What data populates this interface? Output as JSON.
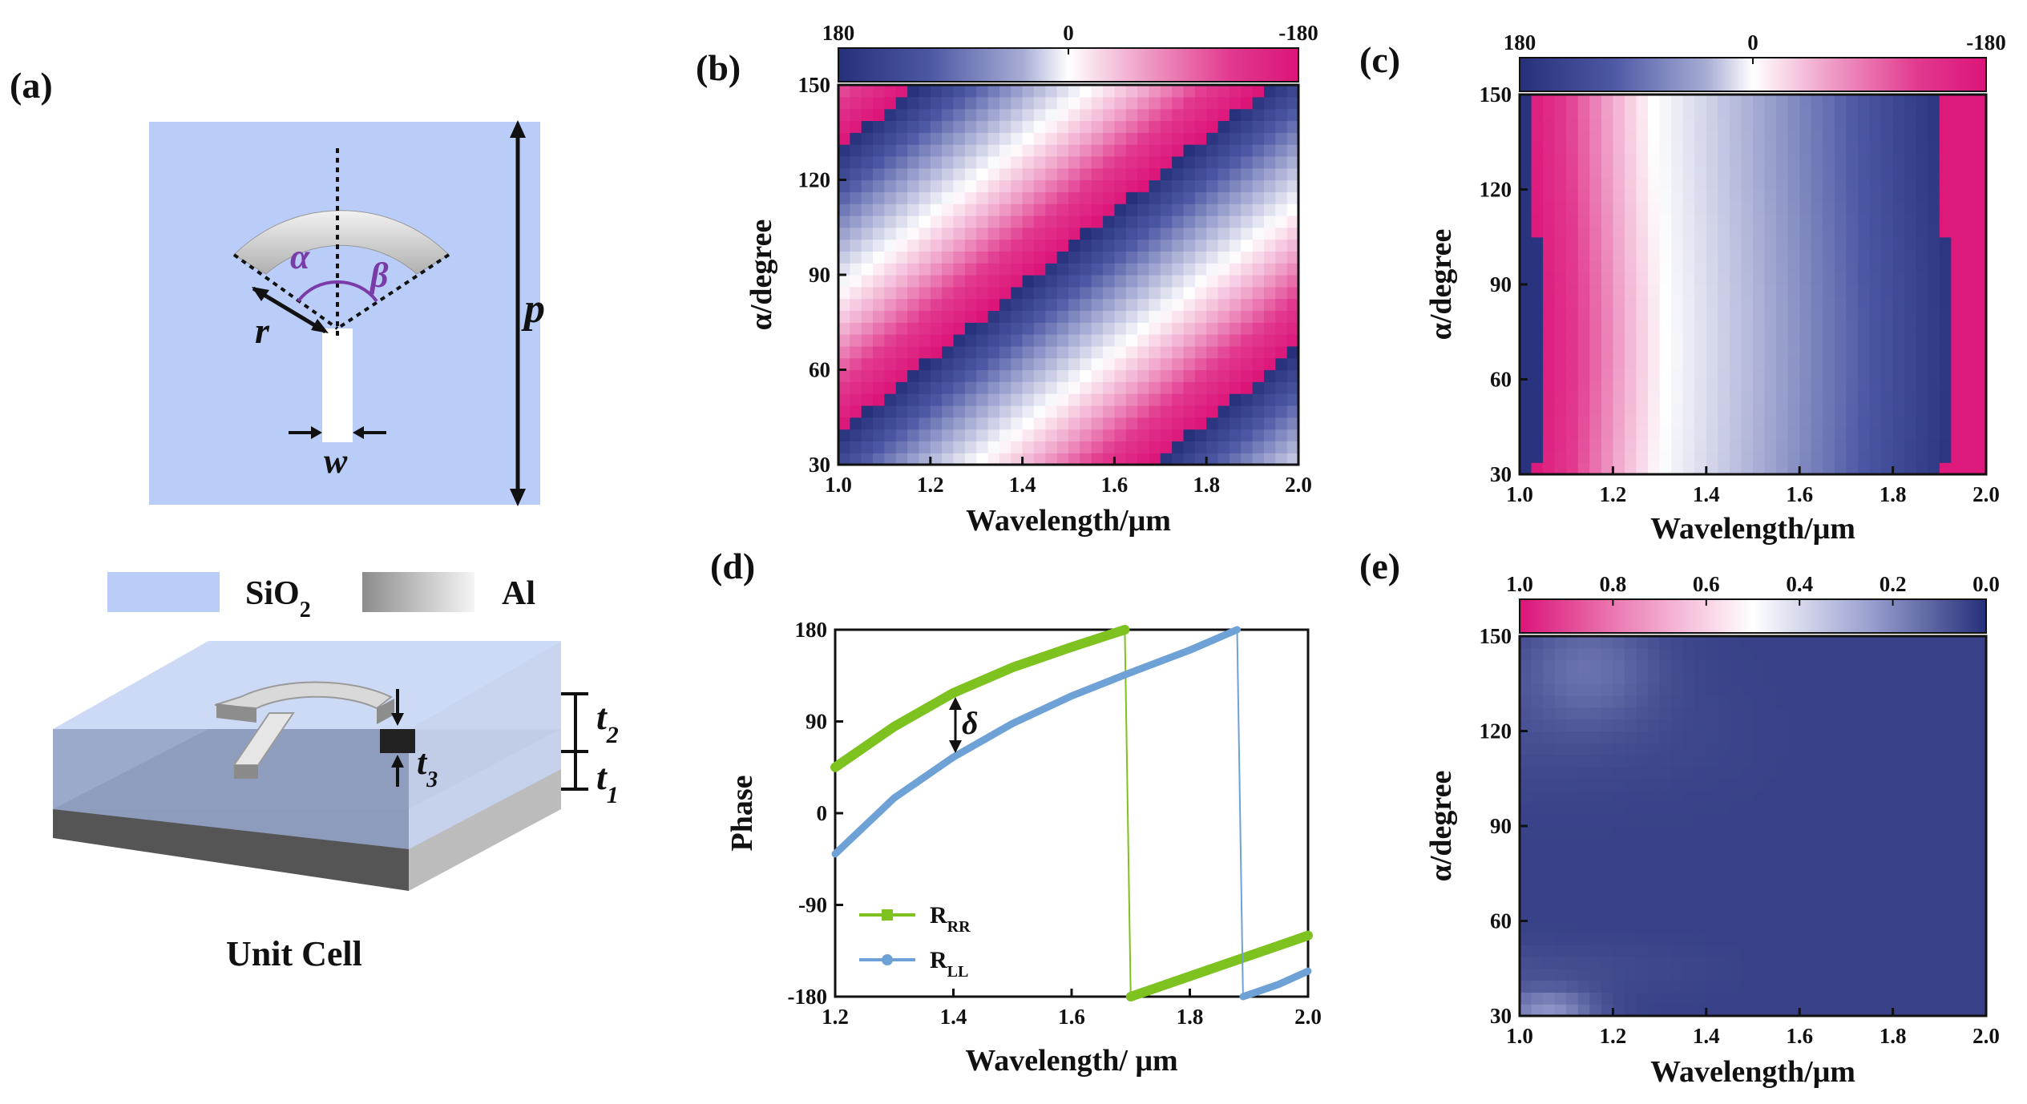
{
  "panels": {
    "a": "(a)",
    "b": "(b)",
    "c": "(c)",
    "d": "(d)",
    "e": "(e)"
  },
  "panel_a": {
    "symbols": {
      "alpha": "α",
      "beta": "β",
      "r": "r",
      "p": "p",
      "w": "w",
      "t1": "t",
      "t2": "t",
      "t3": "t",
      "t1_sub": "1",
      "t2_sub": "2",
      "t3_sub": "3"
    },
    "legend": {
      "sio2_main": "SiO",
      "sio2_sub": "2",
      "al": "Al"
    },
    "caption": "Unit Cell",
    "colors": {
      "sio2": "#b9cdf8",
      "metal_light": "#f2f2f2",
      "metal_dark": "#8c8c8c",
      "purple": "#7a3aa8"
    }
  },
  "colormaps": {
    "phase": [
      "#26307a",
      "#4d58a4",
      "#a7acd4",
      "#ffffff",
      "#f0a6cb",
      "#e23a8f",
      "#dc1478"
    ],
    "amplitude": [
      "#dc1478",
      "#ee8fbf",
      "#ffffff",
      "#9aa0d0",
      "#26307a"
    ]
  },
  "chart_data": [
    {
      "id": "b",
      "type": "heatmap",
      "title": "",
      "xlabel": "Wavelength/μm",
      "ylabel": "α/degree",
      "xlim": [
        1.0,
        2.0
      ],
      "ylim": [
        30,
        150
      ],
      "x_ticks": [
        "1.0",
        "1.2",
        "1.4",
        "1.6",
        "1.8",
        "2.0"
      ],
      "y_ticks": [
        "30",
        "60",
        "90",
        "120",
        "150"
      ],
      "colorbar": {
        "min": 180,
        "max": -180,
        "ticks": [
          "180",
          "0",
          "-180"
        ]
      },
      "description_model": {
        "phase_equation": "wrap(180 - 470*(λ - 1.0) + 4.0*(α - 30))",
        "units": "degree"
      }
    },
    {
      "id": "c",
      "type": "heatmap",
      "xlabel": "Wavelength/μm",
      "ylabel": "α/degree",
      "xlim": [
        1.0,
        2.0
      ],
      "ylim": [
        30,
        150
      ],
      "x_ticks": [
        "1.0",
        "1.2",
        "1.4",
        "1.6",
        "1.8",
        "2.0"
      ],
      "y_ticks": [
        "30",
        "60",
        "90",
        "120",
        "150"
      ],
      "colorbar": {
        "min": 180,
        "max": -180,
        "ticks": [
          "180",
          "0",
          "-180"
        ]
      },
      "description_model": {
        "phase_at_alpha_independent": [
          [
            1.0,
            180
          ],
          [
            1.04,
            -160
          ],
          [
            1.3,
            0
          ],
          [
            1.6,
            110
          ],
          [
            1.9,
            180
          ],
          [
            1.92,
            -170
          ],
          [
            2.0,
            -160
          ]
        ]
      }
    },
    {
      "id": "d",
      "type": "line",
      "xlabel": "Wavelength/ μm",
      "ylabel": "Phase",
      "xlim": [
        1.2,
        2.0
      ],
      "ylim": [
        -180,
        180
      ],
      "x_ticks": [
        "1.2",
        "1.4",
        "1.6",
        "1.8",
        "2.0"
      ],
      "y_ticks": [
        "-180",
        "-90",
        "0",
        "90",
        "180"
      ],
      "annotation": "δ",
      "series": [
        {
          "name": "R",
          "sub": "RR",
          "color": "#7dc21e",
          "x": [
            1.2,
            1.3,
            1.4,
            1.5,
            1.6,
            1.69,
            1.7,
            1.8,
            1.9,
            2.0
          ],
          "y": [
            45,
            85,
            118,
            143,
            163,
            180,
            -180,
            -160,
            -140,
            -120
          ]
        },
        {
          "name": "R",
          "sub": "LL",
          "color": "#6ea1d6",
          "x": [
            1.2,
            1.3,
            1.4,
            1.5,
            1.6,
            1.7,
            1.8,
            1.88,
            1.89,
            1.95,
            2.0
          ],
          "y": [
            -40,
            15,
            55,
            88,
            115,
            138,
            160,
            180,
            -180,
            -168,
            -155
          ]
        }
      ]
    },
    {
      "id": "e",
      "type": "heatmap",
      "xlabel": "Wavelength/μm",
      "ylabel": "α/degree",
      "xlim": [
        1.0,
        2.0
      ],
      "ylim": [
        30,
        150
      ],
      "x_ticks": [
        "1.0",
        "1.2",
        "1.4",
        "1.6",
        "1.8",
        "2.0"
      ],
      "y_ticks": [
        "30",
        "60",
        "90",
        "120",
        "150"
      ],
      "colorbar": {
        "min": 1.0,
        "max": 0.0,
        "ticks": [
          "1.0",
          "0.8",
          "0.6",
          "0.4",
          "0.2",
          "0.0"
        ]
      },
      "description_model": {
        "amplitude_range": [
          0.0,
          0.35
        ]
      }
    }
  ]
}
